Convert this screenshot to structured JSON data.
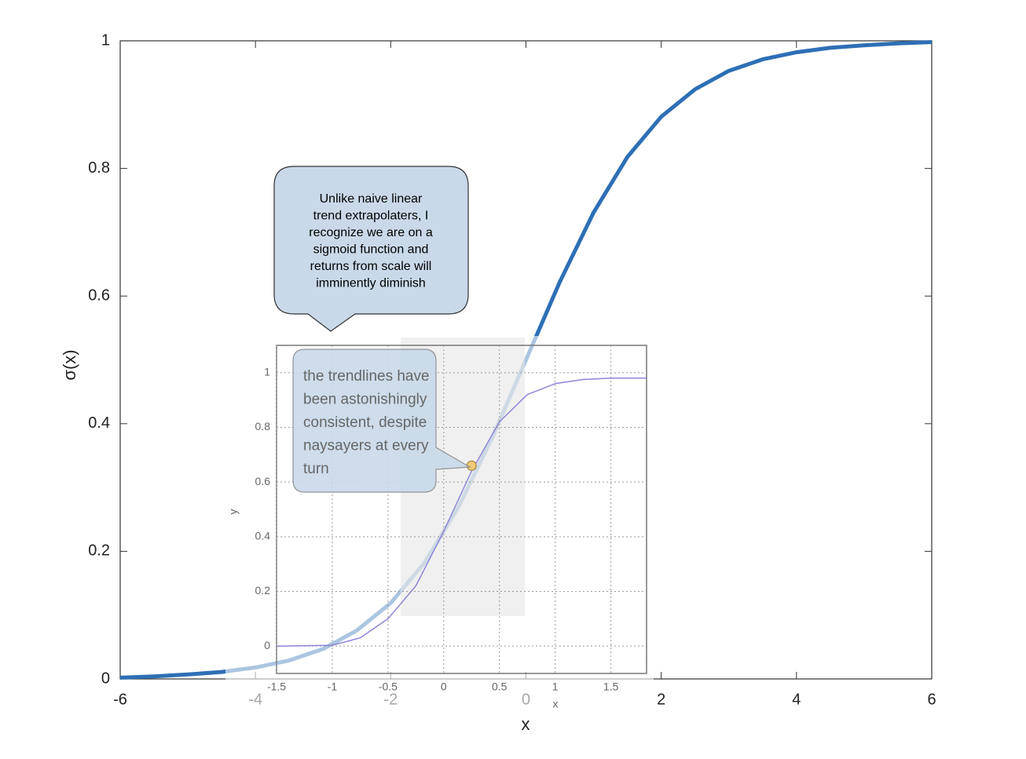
{
  "chart_data": [
    {
      "type": "line",
      "xlabel": "x",
      "ylabel": "σ(x)",
      "x": [
        -6,
        -5.5,
        -5,
        -4.5,
        -4,
        -3.5,
        -3,
        -2.5,
        -2,
        -1.5,
        -1,
        -0.5,
        0,
        0.5,
        1,
        1.5,
        2,
        2.5,
        3,
        3.5,
        4,
        4.5,
        5,
        5.5,
        6
      ],
      "series": [
        {
          "name": "σ(x)",
          "color": "#2e6fb5",
          "values": [
            0.002,
            0.004,
            0.007,
            0.011,
            0.018,
            0.029,
            0.047,
            0.076,
            0.119,
            0.182,
            0.269,
            0.378,
            0.5,
            0.622,
            0.731,
            0.818,
            0.881,
            0.924,
            0.953,
            0.971,
            0.982,
            0.989,
            0.993,
            0.996,
            0.998
          ]
        }
      ],
      "xlim": [
        -6,
        6
      ],
      "xticks": [
        -6,
        -4,
        -2,
        0,
        2,
        4,
        6
      ],
      "ylim": [
        0,
        1
      ],
      "yticks": [
        0,
        0.2,
        0.4,
        0.6,
        0.8,
        1
      ],
      "annotation": [
        "Unlike naive linear",
        "trend extrapolaters, I",
        "recognize we are on a",
        "sigmoid function and",
        "returns from scale will",
        "imminently diminish"
      ]
    },
    {
      "type": "line",
      "xlabel": "x",
      "ylabel": "y",
      "grid": true,
      "x": [
        -1.5,
        -1,
        -0.75,
        -0.5,
        -0.25,
        0,
        0.25,
        0.5,
        0.75,
        1,
        1.25,
        1.5,
        1.82
      ],
      "series": [
        {
          "name": "y",
          "color": "#8f86d8",
          "values": [
            0,
            0.003,
            0.03,
            0.1,
            0.22,
            0.42,
            0.64,
            0.82,
            0.92,
            0.96,
            0.975,
            0.98,
            0.98
          ]
        }
      ],
      "xlim": [
        -1.5,
        1.82
      ],
      "xticks": [
        -1.5,
        -1,
        -0.5,
        0,
        0.5,
        1,
        1.5
      ],
      "ylim": [
        -0.1,
        1.1
      ],
      "yticks": [
        0,
        0.2,
        0.4,
        0.6,
        0.8,
        1
      ],
      "highlight": {
        "x": 0.25,
        "y": 0.66
      },
      "annotation": [
        "the trendlines have",
        "been astonishingly",
        "consistent, despite",
        "naysayers at every",
        "turn"
      ]
    }
  ]
}
